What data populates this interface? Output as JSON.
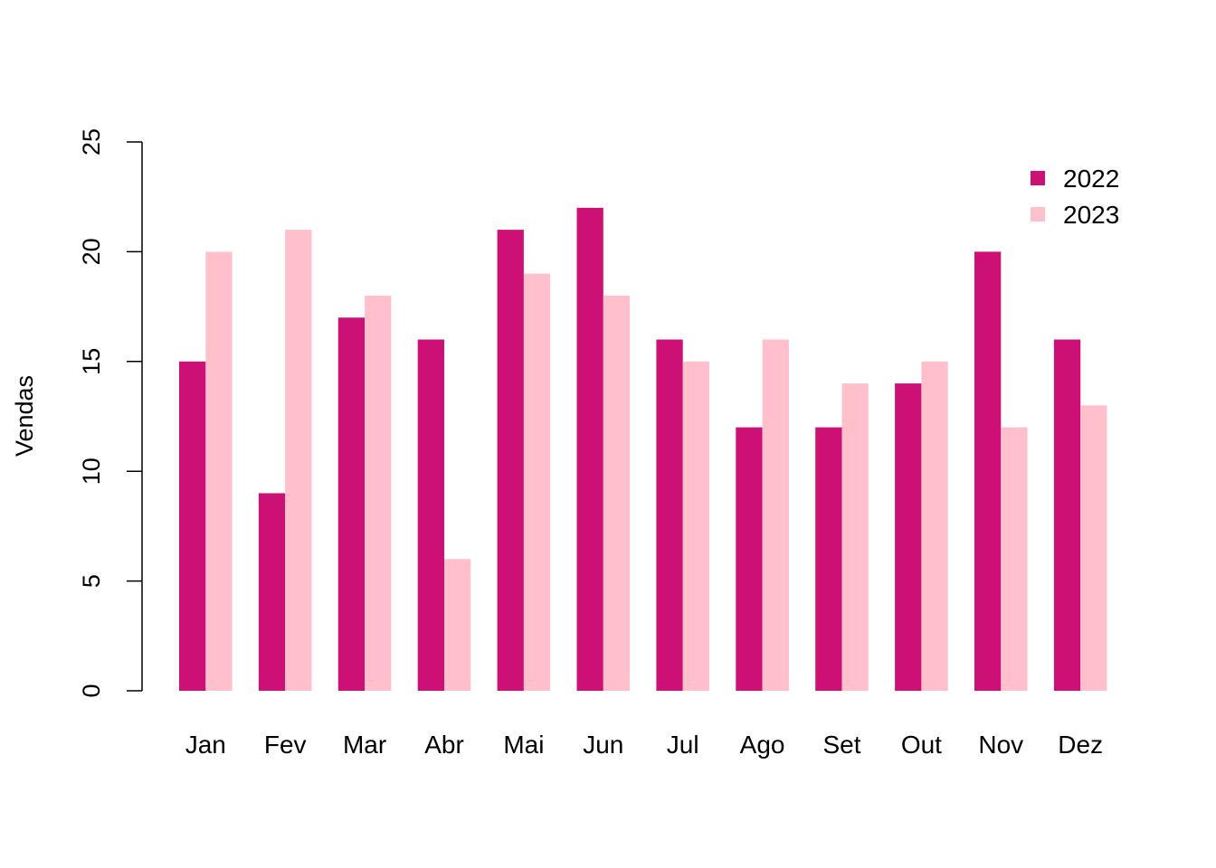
{
  "chart_data": {
    "type": "bar",
    "title": "",
    "xlabel": "",
    "ylabel": "Vendas",
    "ylim": [
      0,
      25
    ],
    "yticks": [
      0,
      5,
      10,
      15,
      20,
      25
    ],
    "categories": [
      "Jan",
      "Fev",
      "Mar",
      "Abr",
      "Mai",
      "Jun",
      "Jul",
      "Ago",
      "Set",
      "Out",
      "Nov",
      "Dez"
    ],
    "series": [
      {
        "name": "2022",
        "color": "#CD1076",
        "values": [
          15,
          9,
          17,
          16,
          21,
          22,
          16,
          12,
          12,
          14,
          20,
          16
        ]
      },
      {
        "name": "2023",
        "color": "#FFC0CB",
        "values": [
          20,
          21,
          18,
          6,
          19,
          18,
          15,
          16,
          14,
          15,
          12,
          13
        ]
      }
    ],
    "legend_position": "top-right",
    "grid": false
  }
}
